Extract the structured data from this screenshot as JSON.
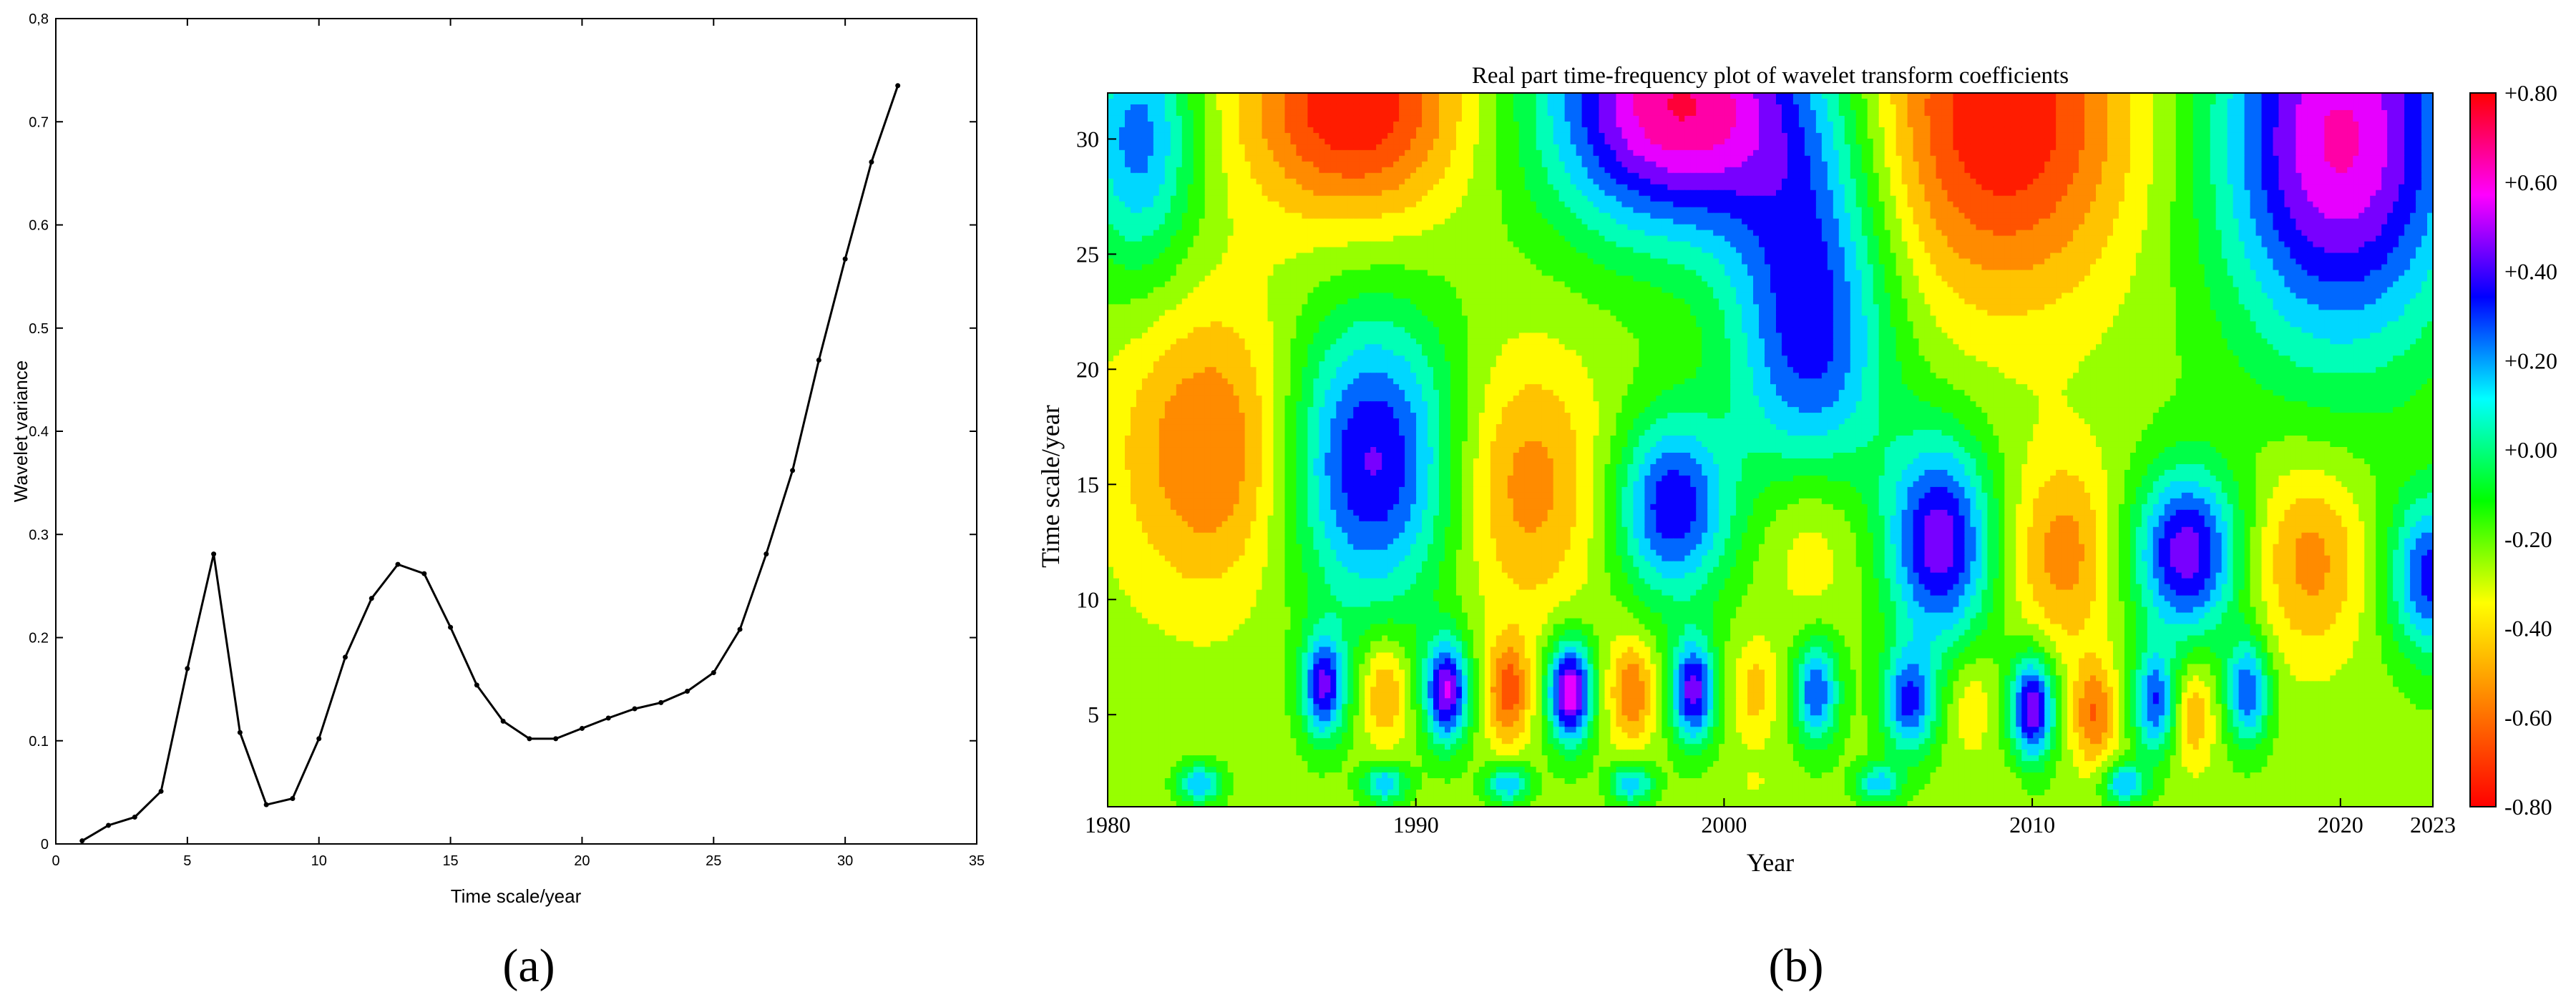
{
  "chart_data": [
    {
      "panel_label": "(a)",
      "type": "line",
      "xlabel": "Time scale/year",
      "ylabel": "Wavelet variance",
      "xlim": [
        0,
        35
      ],
      "ylim": [
        0,
        0.8
      ],
      "x_ticks": [
        0,
        5,
        10,
        15,
        20,
        25,
        30,
        35
      ],
      "y_ticks": [
        0,
        0.1,
        0.2,
        0.3,
        0.4,
        0.5,
        0.6,
        0.7,
        0.8
      ],
      "y_tick_labels": [
        "0",
        "0.1",
        "0.2",
        "0.3",
        "0.4",
        "0.5",
        "0.6",
        "0.7",
        "0,8"
      ],
      "grid": false,
      "series": [
        {
          "x": [
            1,
            2,
            3,
            4,
            5,
            6,
            7,
            8,
            9,
            10,
            11,
            12,
            13,
            14,
            15,
            16,
            17,
            18,
            19,
            20,
            21,
            22,
            23,
            24,
            25,
            26,
            27,
            28,
            29,
            30,
            31,
            32
          ],
          "values": [
            0.003,
            0.018,
            0.026,
            0.051,
            0.17,
            0.281,
            0.108,
            0.038,
            0.044,
            0.102,
            0.181,
            0.238,
            0.271,
            0.262,
            0.21,
            0.154,
            0.119,
            0.102,
            0.102,
            0.112,
            0.122,
            0.131,
            0.137,
            0.148,
            0.166,
            0.208,
            0.281,
            0.362,
            0.469,
            0.567,
            0.661,
            0.735
          ],
          "color": "#000000"
        }
      ]
    },
    {
      "panel_label": "(b)",
      "type": "heatmap",
      "title": "Real part time-frequency plot of wavelet transform coefficients",
      "xlabel": "Year",
      "ylabel": "Time scale/year",
      "xlim": [
        1980,
        2023
      ],
      "ylim": [
        1,
        32
      ],
      "x_ticks": [
        1980,
        1990,
        2000,
        2010,
        2020,
        2023
      ],
      "y_ticks": [
        5,
        10,
        15,
        20,
        25,
        30
      ],
      "colorbar": {
        "range": [
          -0.8,
          0.8
        ],
        "ticks": [
          0.8,
          0.6,
          0.4,
          0.2,
          0.0,
          -0.2,
          -0.4,
          -0.6,
          -0.8
        ],
        "tick_labels": [
          "+0.80",
          "+0.60",
          "+0.40",
          "+0.20",
          "+0.00",
          "-0.20",
          "-0.40",
          "-0.60",
          "-0.80"
        ],
        "colors": [
          "#ff0000",
          "#ff7f00",
          "#ffff00",
          "#00ff00",
          "#00ffff",
          "#0000ff",
          "#ff00ff",
          "#ff0000"
        ],
        "contour_levels": 16
      },
      "features": [
        {
          "t": 1983.5,
          "s": 16.5,
          "v": -0.62,
          "dt": 2.2,
          "ds": 4.5
        },
        {
          "t": 1988.5,
          "s": 16.0,
          "v": 0.44,
          "dt": 2.0,
          "ds": 4.5
        },
        {
          "t": 1993.5,
          "s": 15.0,
          "v": -0.56,
          "dt": 1.8,
          "ds": 4.0
        },
        {
          "t": 1998.3,
          "s": 14.0,
          "v": 0.38,
          "dt": 1.3,
          "ds": 2.8
        },
        {
          "t": 2002.8,
          "s": 13.0,
          "v": -0.5,
          "dt": 1.3,
          "ds": 3.0
        },
        {
          "t": 2007.0,
          "s": 12.5,
          "v": 0.46,
          "dt": 1.2,
          "ds": 3.2
        },
        {
          "t": 2011.0,
          "s": 12.0,
          "v": -0.55,
          "dt": 1.2,
          "ds": 3.0
        },
        {
          "t": 2015.0,
          "s": 12.0,
          "v": 0.46,
          "dt": 1.2,
          "ds": 2.6
        },
        {
          "t": 2019.0,
          "s": 11.8,
          "v": -0.55,
          "dt": 1.3,
          "ds": 3.0
        },
        {
          "t": 2023.0,
          "s": 11.0,
          "v": 0.35,
          "dt": 1.0,
          "ds": 2.5
        },
        {
          "t": 1988.0,
          "s": 31.5,
          "v": -0.8,
          "dt": 2.5,
          "ds": 3.5
        },
        {
          "t": 1998.5,
          "s": 31.5,
          "v": 0.7,
          "dt": 3.0,
          "ds": 4.0
        },
        {
          "t": 2009.0,
          "s": 31.0,
          "v": -0.8,
          "dt": 3.0,
          "ds": 5.5
        },
        {
          "t": 2020.0,
          "s": 30.0,
          "v": 0.62,
          "dt": 2.8,
          "ds": 6.5
        },
        {
          "t": 2002.8,
          "s": 22.0,
          "v": 0.38,
          "dt": 1.8,
          "ds": 6.0
        },
        {
          "t": 1981.0,
          "s": 30.0,
          "v": 0.25,
          "dt": 1.3,
          "ds": 4.0
        },
        {
          "t": 1987.0,
          "s": 6.2,
          "v": 0.4,
          "dt": 0.5,
          "ds": 1.6
        },
        {
          "t": 1989.0,
          "s": 6.0,
          "v": -0.55,
          "dt": 0.5,
          "ds": 1.6
        },
        {
          "t": 1991.0,
          "s": 6.0,
          "v": 0.5,
          "dt": 0.5,
          "ds": 1.6
        },
        {
          "t": 1993.0,
          "s": 6.0,
          "v": -0.65,
          "dt": 0.5,
          "ds": 1.6
        },
        {
          "t": 1995.0,
          "s": 6.0,
          "v": 0.6,
          "dt": 0.5,
          "ds": 1.6
        },
        {
          "t": 1997.0,
          "s": 6.0,
          "v": -0.6,
          "dt": 0.5,
          "ds": 1.6
        },
        {
          "t": 1999.0,
          "s": 6.0,
          "v": 0.45,
          "dt": 0.5,
          "ds": 1.6
        },
        {
          "t": 2001.0,
          "s": 6.0,
          "v": -0.45,
          "dt": 0.5,
          "ds": 1.6
        },
        {
          "t": 2003.0,
          "s": 6.0,
          "v": 0.3,
          "dt": 0.5,
          "ds": 1.6
        },
        {
          "t": 2006.0,
          "s": 5.5,
          "v": 0.3,
          "dt": 0.6,
          "ds": 1.6
        },
        {
          "t": 2008.0,
          "s": 5.5,
          "v": -0.4,
          "dt": 0.5,
          "ds": 1.6
        },
        {
          "t": 2010.0,
          "s": 5.3,
          "v": 0.5,
          "dt": 0.5,
          "ds": 1.6
        },
        {
          "t": 2012.0,
          "s": 5.0,
          "v": -0.6,
          "dt": 0.5,
          "ds": 1.6
        },
        {
          "t": 2014.0,
          "s": 5.5,
          "v": 0.3,
          "dt": 0.5,
          "ds": 1.6
        },
        {
          "t": 2015.2,
          "s": 5.0,
          "v": -0.5,
          "dt": 0.5,
          "ds": 1.6
        },
        {
          "t": 2017.0,
          "s": 6.0,
          "v": 0.3,
          "dt": 0.5,
          "ds": 1.6
        },
        {
          "t": 1983.0,
          "s": 2.0,
          "v": 0.2,
          "dt": 0.5,
          "ds": 0.6
        },
        {
          "t": 1989.0,
          "s": 2.0,
          "v": 0.2,
          "dt": 0.5,
          "ds": 0.6
        },
        {
          "t": 1993.0,
          "s": 2.0,
          "v": 0.2,
          "dt": 0.5,
          "ds": 0.6
        },
        {
          "t": 1997.0,
          "s": 2.0,
          "v": 0.2,
          "dt": 0.5,
          "ds": 0.6
        },
        {
          "t": 2001.0,
          "s": 2.0,
          "v": -0.3,
          "dt": 0.5,
          "ds": 0.6
        },
        {
          "t": 2005.0,
          "s": 2.0,
          "v": 0.15,
          "dt": 0.5,
          "ds": 0.6
        },
        {
          "t": 2009.0,
          "s": 2.0,
          "v": -0.3,
          "dt": 0.5,
          "ds": 0.6
        },
        {
          "t": 2013.0,
          "s": 2.0,
          "v": 0.2,
          "dt": 0.5,
          "ds": 0.6
        }
      ]
    }
  ]
}
